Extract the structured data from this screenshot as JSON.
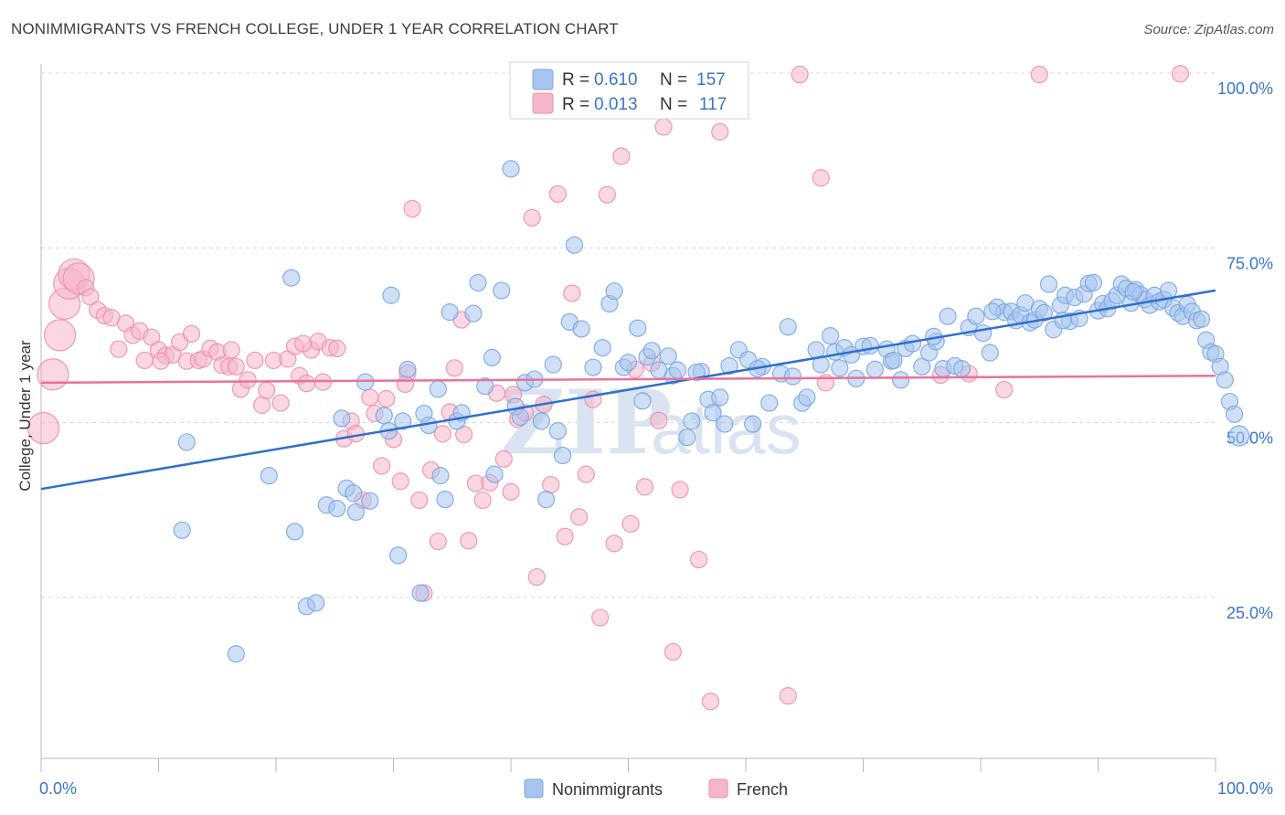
{
  "title": "NONIMMIGRANTS VS FRENCH COLLEGE, UNDER 1 YEAR CORRELATION CHART",
  "source": "Source: ZipAtlas.com",
  "watermark": {
    "zip": "ZIP",
    "atlas": "atlas"
  },
  "colors": {
    "blue_fill": "#a8c5ef",
    "blue_stroke": "#7aa7e0",
    "blue_line": "#2f6fcc",
    "pink_fill": "#f6b6ca",
    "pink_stroke": "#ec8fae",
    "pink_line": "#e8729a",
    "tick_text": "#3a74c9",
    "grid": "#d8d8d8"
  },
  "legend_top": {
    "rows": [
      {
        "r_label": "R = ",
        "r_value": "0.610",
        "n_label": "N = ",
        "n_value": "157",
        "color": "blue"
      },
      {
        "r_label": "R = ",
        "r_value": "0.013",
        "n_label": "N = ",
        "n_value": "117",
        "color": "pink"
      }
    ]
  },
  "chart_data": {
    "type": "scatter",
    "title": "NONIMMIGRANTS VS FRENCH COLLEGE, UNDER 1 YEAR CORRELATION CHART",
    "xlabel": "",
    "ylabel": "College, Under 1 year",
    "xlim": [
      0,
      100
    ],
    "ylim": [
      0,
      100
    ],
    "x_tick_labels": {
      "left": "0.0%",
      "right": "100.0%"
    },
    "y_ticks": [
      {
        "value": 100,
        "label": "100.0%"
      },
      {
        "value": 75,
        "label": "75.0%"
      },
      {
        "value": 50,
        "label": "50.0%"
      },
      {
        "value": 25,
        "label": "25.0%"
      }
    ],
    "grid": true,
    "legend_position": "bottom-center",
    "series": [
      {
        "name": "Nonimmigrants",
        "color": "blue",
        "trend": {
          "x": [
            0,
            100
          ],
          "y": [
            40.5,
            68.9
          ]
        },
        "points": [
          [
            12.0,
            34.6
          ],
          [
            12.4,
            47.2
          ],
          [
            16.6,
            16.9
          ],
          [
            19.4,
            42.4
          ],
          [
            21.3,
            70.7
          ],
          [
            21.6,
            34.4
          ],
          [
            22.6,
            23.7
          ],
          [
            23.4,
            24.2
          ],
          [
            24.3,
            38.2
          ],
          [
            25.2,
            37.7
          ],
          [
            25.6,
            50.6
          ],
          [
            26.0,
            40.6
          ],
          [
            26.6,
            39.9
          ],
          [
            26.8,
            37.2
          ],
          [
            27.6,
            55.8
          ],
          [
            28.0,
            38.8
          ],
          [
            29.2,
            51.0
          ],
          [
            29.6,
            48.8
          ],
          [
            29.8,
            68.2
          ],
          [
            30.4,
            31.0
          ],
          [
            30.8,
            50.2
          ],
          [
            31.2,
            57.6
          ],
          [
            32.3,
            25.6
          ],
          [
            32.6,
            51.3
          ],
          [
            33.0,
            49.6
          ],
          [
            33.8,
            54.8
          ],
          [
            34.0,
            42.4
          ],
          [
            34.4,
            39.0
          ],
          [
            34.8,
            65.8
          ],
          [
            35.4,
            50.2
          ],
          [
            35.8,
            51.4
          ],
          [
            36.8,
            65.6
          ],
          [
            37.2,
            70.0
          ],
          [
            37.8,
            55.2
          ],
          [
            38.4,
            59.3
          ],
          [
            38.6,
            42.6
          ],
          [
            39.2,
            68.9
          ],
          [
            40.0,
            86.3
          ],
          [
            40.4,
            52.3
          ],
          [
            40.8,
            50.8
          ],
          [
            41.2,
            55.7
          ],
          [
            42.0,
            56.2
          ],
          [
            42.6,
            50.2
          ],
          [
            43.0,
            39.0
          ],
          [
            43.6,
            58.3
          ],
          [
            44.0,
            48.8
          ],
          [
            44.4,
            45.3
          ],
          [
            45.0,
            64.4
          ],
          [
            45.4,
            75.4
          ],
          [
            46.0,
            63.4
          ],
          [
            47.0,
            57.9
          ],
          [
            47.8,
            60.7
          ],
          [
            48.4,
            67.0
          ],
          [
            48.8,
            68.8
          ],
          [
            49.6,
            57.9
          ],
          [
            50.0,
            58.6
          ],
          [
            50.8,
            63.5
          ],
          [
            51.2,
            53.1
          ],
          [
            51.6,
            59.4
          ],
          [
            52.0,
            60.3
          ],
          [
            52.6,
            57.5
          ],
          [
            53.4,
            59.5
          ],
          [
            53.8,
            56.7
          ],
          [
            54.2,
            57.5
          ],
          [
            55.0,
            47.9
          ],
          [
            55.4,
            50.2
          ],
          [
            56.2,
            57.3
          ],
          [
            56.8,
            53.3
          ],
          [
            57.2,
            51.4
          ],
          [
            57.8,
            53.6
          ],
          [
            58.2,
            49.8
          ],
          [
            58.6,
            58.1
          ],
          [
            59.4,
            60.4
          ],
          [
            60.2,
            59.0
          ],
          [
            60.6,
            49.8
          ],
          [
            61.4,
            58.0
          ],
          [
            62.0,
            52.8
          ],
          [
            63.0,
            57.0
          ],
          [
            63.6,
            63.7
          ],
          [
            64.0,
            56.6
          ],
          [
            64.8,
            52.8
          ],
          [
            65.2,
            53.6
          ],
          [
            66.0,
            60.4
          ],
          [
            66.4,
            58.3
          ],
          [
            67.2,
            62.4
          ],
          [
            67.6,
            60.1
          ],
          [
            68.4,
            60.7
          ],
          [
            69.0,
            59.7
          ],
          [
            69.4,
            56.3
          ],
          [
            70.0,
            60.9
          ],
          [
            70.6,
            61.0
          ],
          [
            71.0,
            57.6
          ],
          [
            72.0,
            60.5
          ],
          [
            72.4,
            58.8
          ],
          [
            73.2,
            56.1
          ],
          [
            73.6,
            60.6
          ],
          [
            74.2,
            61.3
          ],
          [
            75.0,
            58.0
          ],
          [
            75.6,
            60.0
          ],
          [
            76.2,
            61.6
          ],
          [
            76.8,
            57.7
          ],
          [
            77.2,
            65.2
          ],
          [
            77.8,
            58.1
          ],
          [
            78.4,
            57.7
          ],
          [
            79.0,
            63.6
          ],
          [
            79.6,
            65.2
          ],
          [
            80.2,
            62.8
          ],
          [
            80.8,
            60.0
          ],
          [
            81.4,
            66.5
          ],
          [
            82.0,
            65.8
          ],
          [
            82.6,
            65.9
          ],
          [
            83.0,
            64.6
          ],
          [
            83.4,
            65.4
          ],
          [
            83.8,
            67.1
          ],
          [
            84.2,
            64.3
          ],
          [
            84.6,
            64.7
          ],
          [
            85.0,
            66.3
          ],
          [
            85.4,
            65.7
          ],
          [
            85.8,
            69.8
          ],
          [
            86.2,
            63.3
          ],
          [
            86.8,
            66.8
          ],
          [
            87.2,
            68.2
          ],
          [
            87.6,
            64.5
          ],
          [
            88.0,
            67.9
          ],
          [
            88.4,
            64.9
          ],
          [
            88.8,
            68.4
          ],
          [
            89.2,
            69.9
          ],
          [
            89.6,
            70.0
          ],
          [
            90.0,
            66.0
          ],
          [
            90.4,
            67.0
          ],
          [
            90.8,
            66.3
          ],
          [
            91.2,
            67.4
          ],
          [
            91.6,
            68.2
          ],
          [
            92.0,
            69.8
          ],
          [
            92.4,
            69.2
          ],
          [
            92.8,
            67.1
          ],
          [
            93.2,
            69.0
          ],
          [
            93.6,
            68.3
          ],
          [
            94.0,
            67.6
          ],
          [
            94.4,
            66.8
          ],
          [
            94.8,
            68.2
          ],
          [
            95.2,
            67.3
          ],
          [
            95.6,
            67.6
          ],
          [
            96.0,
            68.9
          ],
          [
            96.4,
            66.4
          ],
          [
            96.8,
            65.7
          ],
          [
            97.2,
            65.2
          ],
          [
            97.6,
            66.9
          ],
          [
            98.0,
            65.9
          ],
          [
            98.4,
            64.6
          ],
          [
            98.8,
            64.8
          ],
          [
            99.2,
            61.8
          ],
          [
            99.6,
            60.1
          ],
          [
            100.0,
            59.8
          ],
          [
            100.4,
            58.0
          ],
          [
            100.8,
            56.1
          ],
          [
            101.2,
            53.0
          ],
          [
            101.6,
            51.2
          ],
          [
            102.0,
            48.1
          ],
          [
            87.0,
            64.6
          ],
          [
            93.0,
            68.7
          ],
          [
            81.0,
            65.9
          ],
          [
            76.0,
            62.3
          ],
          [
            72.6,
            58.9
          ],
          [
            68.0,
            57.8
          ],
          [
            61.0,
            57.7
          ],
          [
            55.8,
            57.2
          ]
        ]
      },
      {
        "name": "French",
        "color": "pink",
        "trend": {
          "x": [
            0,
            100
          ],
          "y": [
            55.7,
            56.7
          ]
        },
        "points": [
          [
            0.2,
            49.2
          ],
          [
            1.0,
            56.9
          ],
          [
            1.6,
            62.5
          ],
          [
            2.0,
            67.0
          ],
          [
            2.4,
            69.9
          ],
          [
            2.8,
            71.2
          ],
          [
            3.2,
            70.6
          ],
          [
            3.8,
            69.3
          ],
          [
            4.2,
            68.0
          ],
          [
            4.8,
            66.1
          ],
          [
            5.4,
            65.3
          ],
          [
            6.0,
            65.0
          ],
          [
            6.6,
            60.5
          ],
          [
            7.2,
            64.2
          ],
          [
            7.8,
            62.5
          ],
          [
            8.4,
            63.1
          ],
          [
            8.8,
            58.9
          ],
          [
            9.4,
            62.2
          ],
          [
            10.0,
            60.4
          ],
          [
            10.6,
            59.6
          ],
          [
            11.2,
            59.7
          ],
          [
            11.8,
            61.5
          ],
          [
            12.4,
            58.8
          ],
          [
            12.8,
            62.7
          ],
          [
            13.4,
            58.9
          ],
          [
            13.8,
            59.1
          ],
          [
            14.4,
            60.6
          ],
          [
            15.0,
            60.1
          ],
          [
            15.4,
            58.2
          ],
          [
            16.0,
            58.0
          ],
          [
            16.6,
            58.0
          ],
          [
            17.0,
            54.8
          ],
          [
            17.6,
            56.1
          ],
          [
            18.2,
            58.9
          ],
          [
            18.8,
            52.5
          ],
          [
            19.2,
            54.6
          ],
          [
            19.8,
            58.9
          ],
          [
            20.4,
            52.8
          ],
          [
            21.0,
            59.1
          ],
          [
            21.6,
            60.9
          ],
          [
            22.0,
            56.7
          ],
          [
            22.6,
            55.6
          ],
          [
            23.0,
            60.4
          ],
          [
            23.6,
            61.6
          ],
          [
            24.0,
            55.8
          ],
          [
            24.6,
            60.7
          ],
          [
            25.2,
            60.6
          ],
          [
            25.8,
            47.7
          ],
          [
            26.4,
            50.2
          ],
          [
            26.8,
            48.4
          ],
          [
            27.4,
            38.9
          ],
          [
            28.0,
            53.6
          ],
          [
            28.4,
            51.3
          ],
          [
            29.0,
            43.8
          ],
          [
            29.4,
            53.4
          ],
          [
            30.0,
            47.6
          ],
          [
            30.6,
            41.6
          ],
          [
            31.2,
            57.1
          ],
          [
            31.6,
            80.6
          ],
          [
            32.2,
            38.9
          ],
          [
            32.6,
            25.6
          ],
          [
            33.2,
            43.2
          ],
          [
            33.8,
            33.0
          ],
          [
            34.2,
            48.4
          ],
          [
            34.8,
            51.5
          ],
          [
            35.2,
            57.8
          ],
          [
            35.8,
            64.7
          ],
          [
            36.4,
            33.1
          ],
          [
            37.0,
            41.3
          ],
          [
            37.6,
            38.9
          ],
          [
            38.2,
            41.4
          ],
          [
            38.8,
            54.2
          ],
          [
            39.4,
            44.8
          ],
          [
            40.0,
            40.1
          ],
          [
            40.6,
            50.5
          ],
          [
            41.2,
            51.4
          ],
          [
            41.8,
            79.3
          ],
          [
            42.2,
            27.9
          ],
          [
            42.8,
            52.6
          ],
          [
            43.4,
            41.1
          ],
          [
            44.0,
            82.7
          ],
          [
            44.6,
            33.7
          ],
          [
            45.2,
            68.5
          ],
          [
            45.8,
            36.5
          ],
          [
            46.4,
            42.6
          ],
          [
            47.0,
            53.3
          ],
          [
            47.6,
            22.1
          ],
          [
            48.2,
            82.6
          ],
          [
            48.8,
            32.7
          ],
          [
            49.4,
            88.1
          ],
          [
            50.2,
            35.5
          ],
          [
            50.6,
            57.6
          ],
          [
            51.4,
            40.8
          ],
          [
            52.0,
            58.5
          ],
          [
            52.6,
            50.3
          ],
          [
            53.0,
            92.3
          ],
          [
            53.8,
            17.2
          ],
          [
            54.4,
            40.4
          ],
          [
            55.2,
            99.8
          ],
          [
            56.0,
            30.4
          ],
          [
            57.0,
            10.1
          ],
          [
            57.8,
            91.6
          ],
          [
            63.6,
            10.9
          ],
          [
            64.6,
            99.8
          ],
          [
            66.4,
            85.0
          ],
          [
            66.8,
            55.7
          ],
          [
            76.6,
            56.8
          ],
          [
            79.0,
            57.0
          ],
          [
            82.0,
            54.7
          ],
          [
            85.0,
            99.8
          ],
          [
            97.0,
            99.9
          ],
          [
            31.0,
            55.5
          ],
          [
            22.3,
            61.3
          ],
          [
            16.2,
            60.4
          ],
          [
            10.2,
            58.8
          ],
          [
            36.0,
            48.3
          ],
          [
            40.2,
            54.0
          ]
        ]
      }
    ]
  },
  "legend_bottom": {
    "items": [
      {
        "label": "Nonimmigrants",
        "color": "blue"
      },
      {
        "label": "French",
        "color": "pink"
      }
    ]
  }
}
